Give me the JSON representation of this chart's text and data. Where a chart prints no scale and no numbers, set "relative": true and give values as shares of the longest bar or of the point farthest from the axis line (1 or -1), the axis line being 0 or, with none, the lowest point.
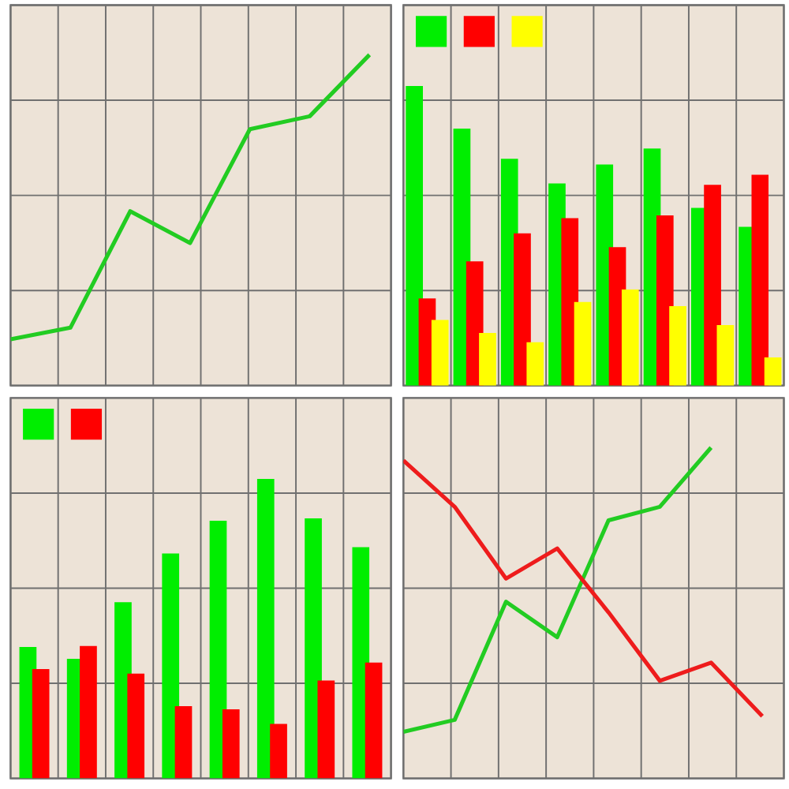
{
  "chart_data": [
    {
      "type": "line",
      "relative": true,
      "categories": [
        null,
        null,
        null,
        null,
        null,
        null,
        null
      ],
      "grid": true,
      "marker": "none",
      "line_style": "solid",
      "series": [
        {
          "color": "#22cc22",
          "values": [
            0.14,
            0.175,
            0.527,
            0.431,
            0.775,
            0.814,
            1
          ]
        }
      ]
    },
    {
      "type": "bar",
      "relative": true,
      "categories": [
        null,
        null,
        null,
        null,
        null,
        null,
        null,
        null
      ],
      "grid": true,
      "series": [
        {
          "color": "#00ee00",
          "values": [
            1,
            0.858,
            0.757,
            0.675,
            0.738,
            0.791,
            0.593,
            0.53
          ]
        },
        {
          "color": "#ff0000",
          "values": [
            0.291,
            0.415,
            0.508,
            0.559,
            0.462,
            0.568,
            0.67,
            0.704
          ]
        },
        {
          "color": "#ffff00",
          "values": [
            0.219,
            0.176,
            0.145,
            0.279,
            0.321,
            0.265,
            0.202,
            0.094
          ]
        }
      ]
    },
    {
      "type": "bar",
      "relative": true,
      "categories": [
        null,
        null,
        null,
        null,
        null,
        null,
        null,
        null
      ],
      "grid": true,
      "series": [
        {
          "color": "#00ee00",
          "values": [
            0.439,
            0.399,
            0.588,
            0.751,
            0.86,
            1,
            0.868,
            0.772
          ]
        },
        {
          "color": "#ff0000",
          "values": [
            0.365,
            0.442,
            0.35,
            0.241,
            0.231,
            0.182,
            0.327,
            0.387
          ]
        }
      ]
    },
    {
      "type": "line",
      "relative": true,
      "categories": [
        null,
        null,
        null,
        null,
        null,
        null,
        null,
        null
      ],
      "grid": true,
      "marker": "none",
      "line_style": "solid",
      "series": [
        {
          "color": "#22cc22",
          "values": [
            0.141,
            0.177,
            0.534,
            0.427,
            0.78,
            0.821,
            1,
            null
          ]
        },
        {
          "color": "#ee1c1c",
          "values": [
            0.961,
            0.821,
            0.604,
            0.695,
            0.502,
            0.295,
            0.35,
            0.188
          ]
        }
      ]
    }
  ]
}
